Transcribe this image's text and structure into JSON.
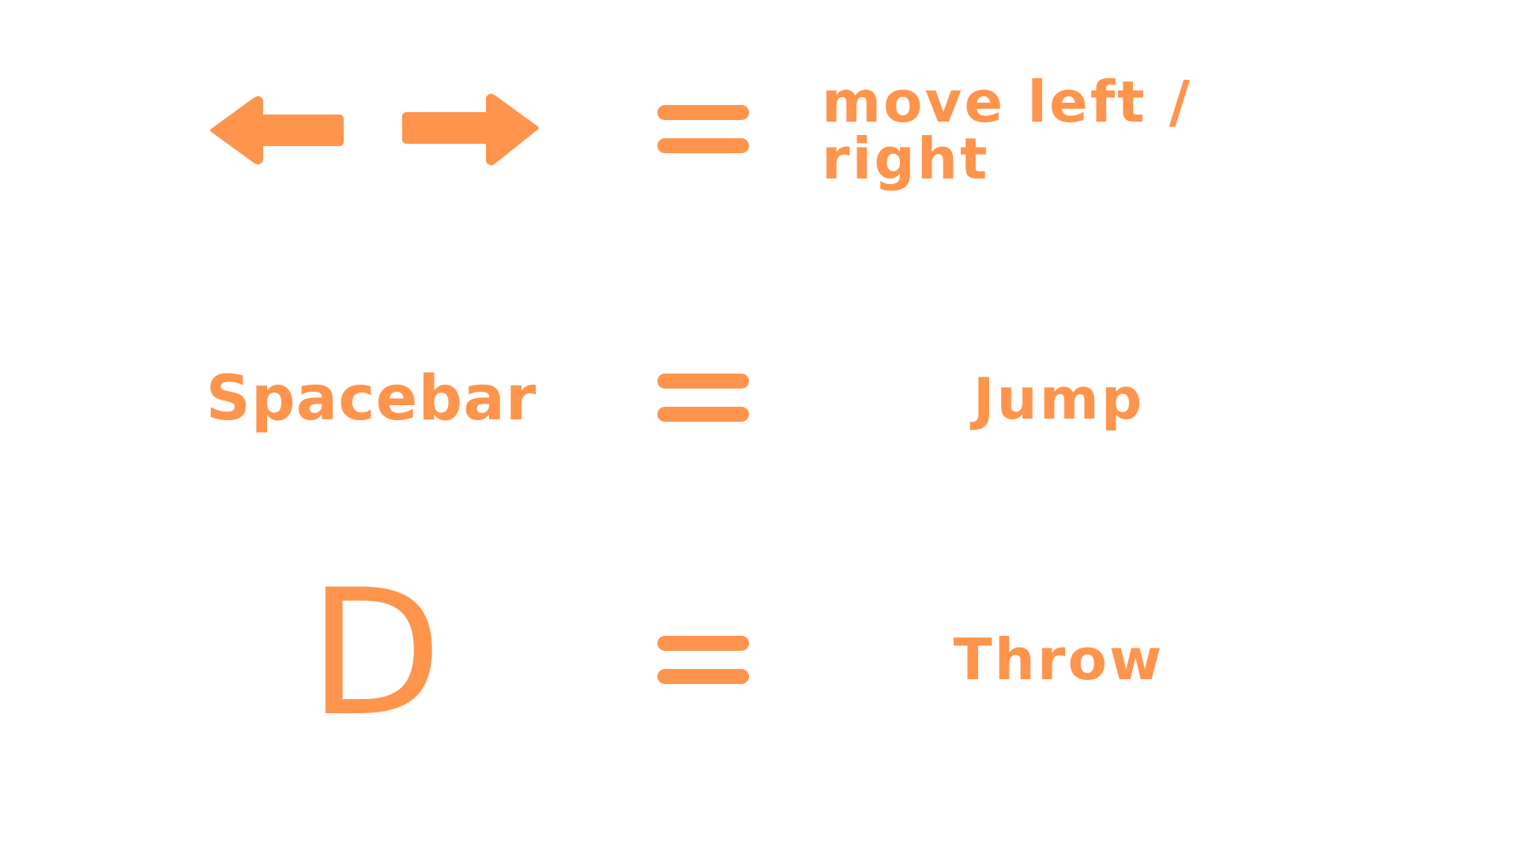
{
  "accent_color": "#ff944d",
  "background_color": "#ffffff",
  "controls": [
    {
      "key_icons": [
        "arrow-left-icon",
        "arrow-right-icon"
      ],
      "equals_icon": "equals-icon",
      "action": "move left / right"
    },
    {
      "key_label": "Spacebar",
      "equals_icon": "equals-icon",
      "action": "Jump"
    },
    {
      "key_label": "D",
      "equals_icon": "equals-icon",
      "action": "Throw"
    }
  ]
}
